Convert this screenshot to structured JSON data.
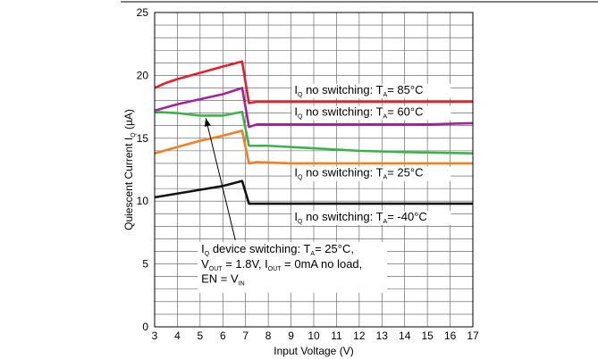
{
  "chart_data": {
    "type": "line",
    "xlabel": "Input Voltage (V)",
    "ylabel_main": "Quiescent Current I",
    "ylabel_sub": "Q",
    "ylabel_unit": " (µA)",
    "xlim": [
      3,
      17
    ],
    "ylim": [
      0,
      25
    ],
    "xticks": [
      "3",
      "4",
      "5",
      "6",
      "7",
      "8",
      "9",
      "10",
      "11",
      "12",
      "13",
      "14",
      "15",
      "16",
      "17"
    ],
    "yticks": [
      "0",
      "5",
      "10",
      "15",
      "20",
      "25"
    ],
    "grid": true,
    "series": [
      {
        "color": "#e31e2d",
        "x": [
          3,
          3.5,
          4,
          5,
          6,
          6.85,
          7.15,
          7.5,
          9,
          12,
          15,
          17
        ],
        "y": [
          19.0,
          19.4,
          19.7,
          20.2,
          20.7,
          21.1,
          17.8,
          17.9,
          17.9,
          17.9,
          17.9,
          17.9
        ]
      },
      {
        "color": "#a4229a",
        "x": [
          3,
          4,
          5,
          6,
          6.85,
          7.15,
          7.5,
          9,
          12,
          15,
          17
        ],
        "y": [
          17.2,
          17.7,
          18.1,
          18.5,
          19.0,
          15.9,
          16.1,
          16.1,
          16.1,
          16.1,
          16.2
        ]
      },
      {
        "color": "#3bb34a",
        "x": [
          3,
          4,
          5,
          6,
          6.85,
          7.15,
          8,
          10,
          12,
          14,
          17
        ],
        "y": [
          17.1,
          17.0,
          16.8,
          16.8,
          17.1,
          14.4,
          14.4,
          14.2,
          14.0,
          13.9,
          13.8
        ]
      },
      {
        "color": "#f27f22",
        "x": [
          3,
          4,
          5,
          6,
          6.85,
          7.15,
          7.5,
          9,
          12,
          15,
          17
        ],
        "y": [
          13.8,
          14.3,
          14.8,
          15.2,
          15.6,
          13.0,
          13.1,
          13.0,
          13.0,
          13.0,
          13.0
        ]
      },
      {
        "color": "#111111",
        "x": [
          3,
          4,
          5,
          6,
          6.85,
          7.15,
          8,
          10,
          13,
          17
        ],
        "y": [
          10.3,
          10.6,
          10.9,
          11.2,
          11.6,
          9.8,
          9.8,
          9.8,
          9.8,
          9.8
        ]
      }
    ],
    "annotations": [
      {
        "parts": [
          [
            "I",
            ""
          ],
          [
            "Q",
            "sub"
          ],
          [
            " no switching: T",
            ""
          ],
          [
            "A",
            "sub"
          ],
          [
            "= 85°C",
            ""
          ]
        ],
        "x": 9.15,
        "y": 18.55
      },
      {
        "parts": [
          [
            "I",
            ""
          ],
          [
            "Q",
            "sub"
          ],
          [
            " no switching: T",
            ""
          ],
          [
            "A",
            "sub"
          ],
          [
            "= 60°C",
            ""
          ]
        ],
        "x": 9.15,
        "y": 16.8
      },
      {
        "parts": [
          [
            "I",
            ""
          ],
          [
            "Q",
            "sub"
          ],
          [
            " no switching: T",
            ""
          ],
          [
            "A",
            "sub"
          ],
          [
            "= 25°C",
            ""
          ]
        ],
        "x": 9.15,
        "y": 11.95
      },
      {
        "parts": [
          [
            "I",
            ""
          ],
          [
            "Q",
            "sub"
          ],
          [
            " no switching: T",
            ""
          ],
          [
            "A",
            "sub"
          ],
          [
            "= -40°C",
            ""
          ]
        ],
        "x": 9.15,
        "y": 8.45
      }
    ],
    "callout": {
      "lines": [
        [
          [
            "I",
            ""
          ],
          [
            "Q",
            "sub"
          ],
          [
            " device switching: T",
            ""
          ],
          [
            "A",
            "sub"
          ],
          [
            "= 25°C,",
            ""
          ]
        ],
        [
          [
            "V",
            ""
          ],
          [
            "OUT",
            "sub"
          ],
          [
            " = 1.8V, I",
            ""
          ],
          [
            "OUT",
            "sub"
          ],
          [
            " = 0mA no load,",
            ""
          ]
        ],
        [
          [
            "EN = V",
            ""
          ],
          [
            "IN",
            "sub"
          ]
        ]
      ],
      "x": 5.05,
      "y_top": 5.9,
      "line_step": 1.2,
      "arrow_from": [
        6.55,
        6.9
      ],
      "arrow_to": [
        5.25,
        16.6
      ]
    }
  }
}
